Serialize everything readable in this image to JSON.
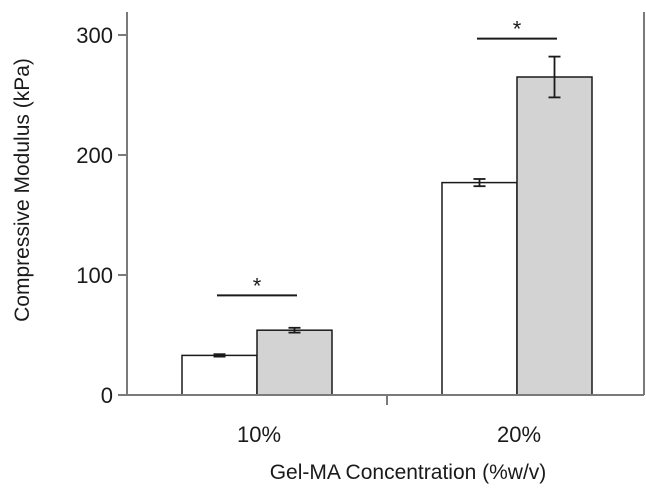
{
  "chart_data": {
    "type": "bar",
    "title": "",
    "xlabel": "Gel-MA Concentration (%w/v)",
    "ylabel": "Compressive Modulus (kPa)",
    "categories": [
      "10%",
      "20%"
    ],
    "ylim": [
      0,
      300
    ],
    "yticks": [
      "0",
      "100",
      "200",
      "300"
    ],
    "grid": false,
    "series": [
      {
        "values": [
          33,
          177
        ],
        "errors": [
          1,
          3
        ],
        "color": "#ffffff"
      },
      {
        "values": [
          54,
          265
        ],
        "errors": [
          2,
          17
        ],
        "color": "#d3d3d3"
      }
    ],
    "annotations": [
      {
        "category": "10%",
        "text": "*",
        "bracket_value": 83
      },
      {
        "category": "20%",
        "text": "*",
        "bracket_value": 297
      }
    ]
  }
}
